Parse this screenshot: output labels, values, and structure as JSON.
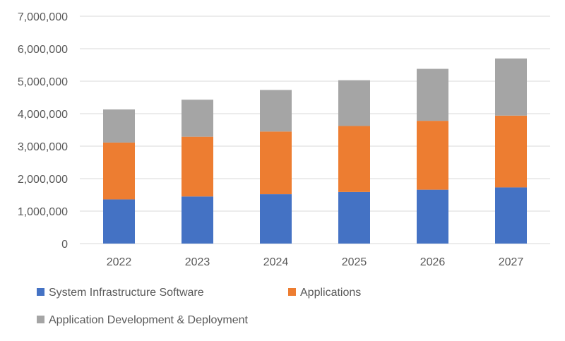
{
  "chart_data": {
    "type": "bar",
    "stacked": true,
    "title": "",
    "xlabel": "",
    "ylabel": "",
    "categories": [
      "2022",
      "2023",
      "2024",
      "2025",
      "2026",
      "2027"
    ],
    "ylim": [
      0,
      7000000
    ],
    "yticks": [
      0,
      1000000,
      2000000,
      3000000,
      4000000,
      5000000,
      6000000,
      7000000
    ],
    "ytick_labels": [
      "0",
      "1,000,000",
      "2,000,000",
      "3,000,000",
      "4,000,000",
      "5,000,000",
      "6,000,000",
      "7,000,000"
    ],
    "grid": true,
    "legend_position": "bottom",
    "series": [
      {
        "name": "System Infrastructure Software",
        "color": "#4472C4",
        "values": [
          1360000,
          1450000,
          1520000,
          1590000,
          1660000,
          1730000
        ]
      },
      {
        "name": "Applications",
        "color": "#ED7D31",
        "values": [
          1750000,
          1840000,
          1930000,
          2030000,
          2120000,
          2210000
        ]
      },
      {
        "name": "Application Development & Deployment",
        "color": "#A5A5A5",
        "values": [
          1020000,
          1140000,
          1280000,
          1410000,
          1600000,
          1760000
        ]
      }
    ]
  }
}
